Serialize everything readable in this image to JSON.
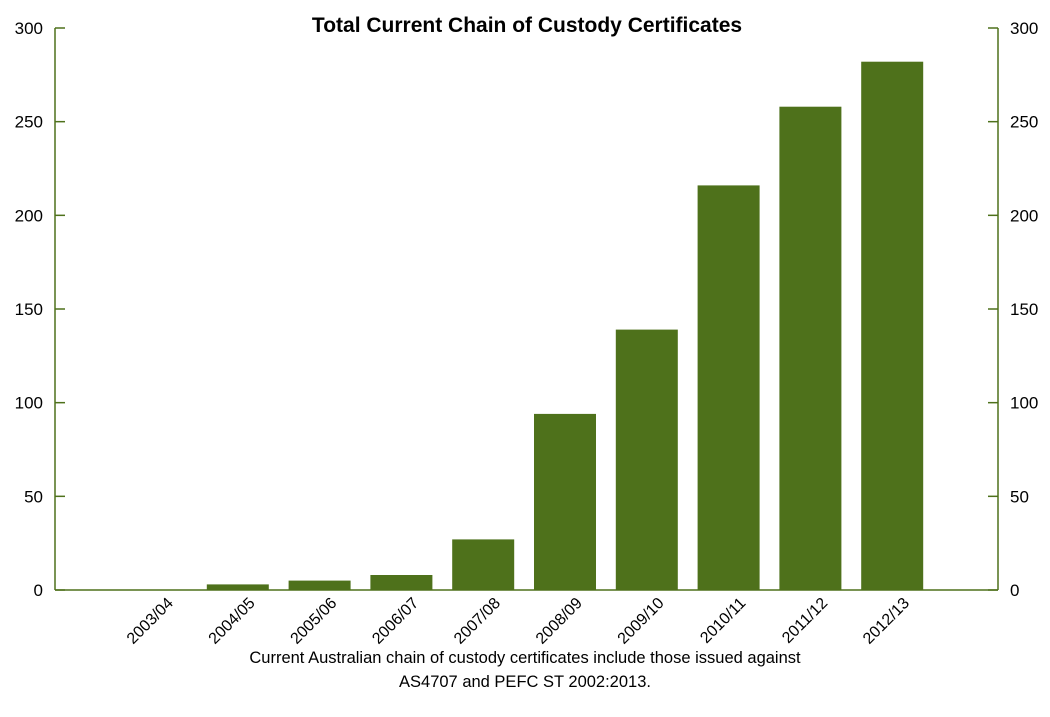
{
  "chart_data": {
    "type": "bar",
    "title": "Total Current Chain of Custody Certificates",
    "categories": [
      "2003/04",
      "2004/05",
      "2005/06",
      "2006/07",
      "2007/08",
      "2008/09",
      "2009/10",
      "2010/11",
      "2011/12",
      "2012/13"
    ],
    "values": [
      0,
      3,
      5,
      8,
      27,
      94,
      139,
      216,
      258,
      282
    ],
    "ylim": [
      0,
      300
    ],
    "yticks": [
      0,
      50,
      100,
      150,
      200,
      250,
      300
    ],
    "xlabel": "",
    "ylabel": "",
    "secondary_y_axis": true,
    "grid": false,
    "bar_color": "#4e711b",
    "axis_color": "#4e711b"
  },
  "caption": {
    "line1": "Current Australian chain of custody certificates include those issued against",
    "line2": "AS4707 and PEFC ST 2002:2013."
  }
}
